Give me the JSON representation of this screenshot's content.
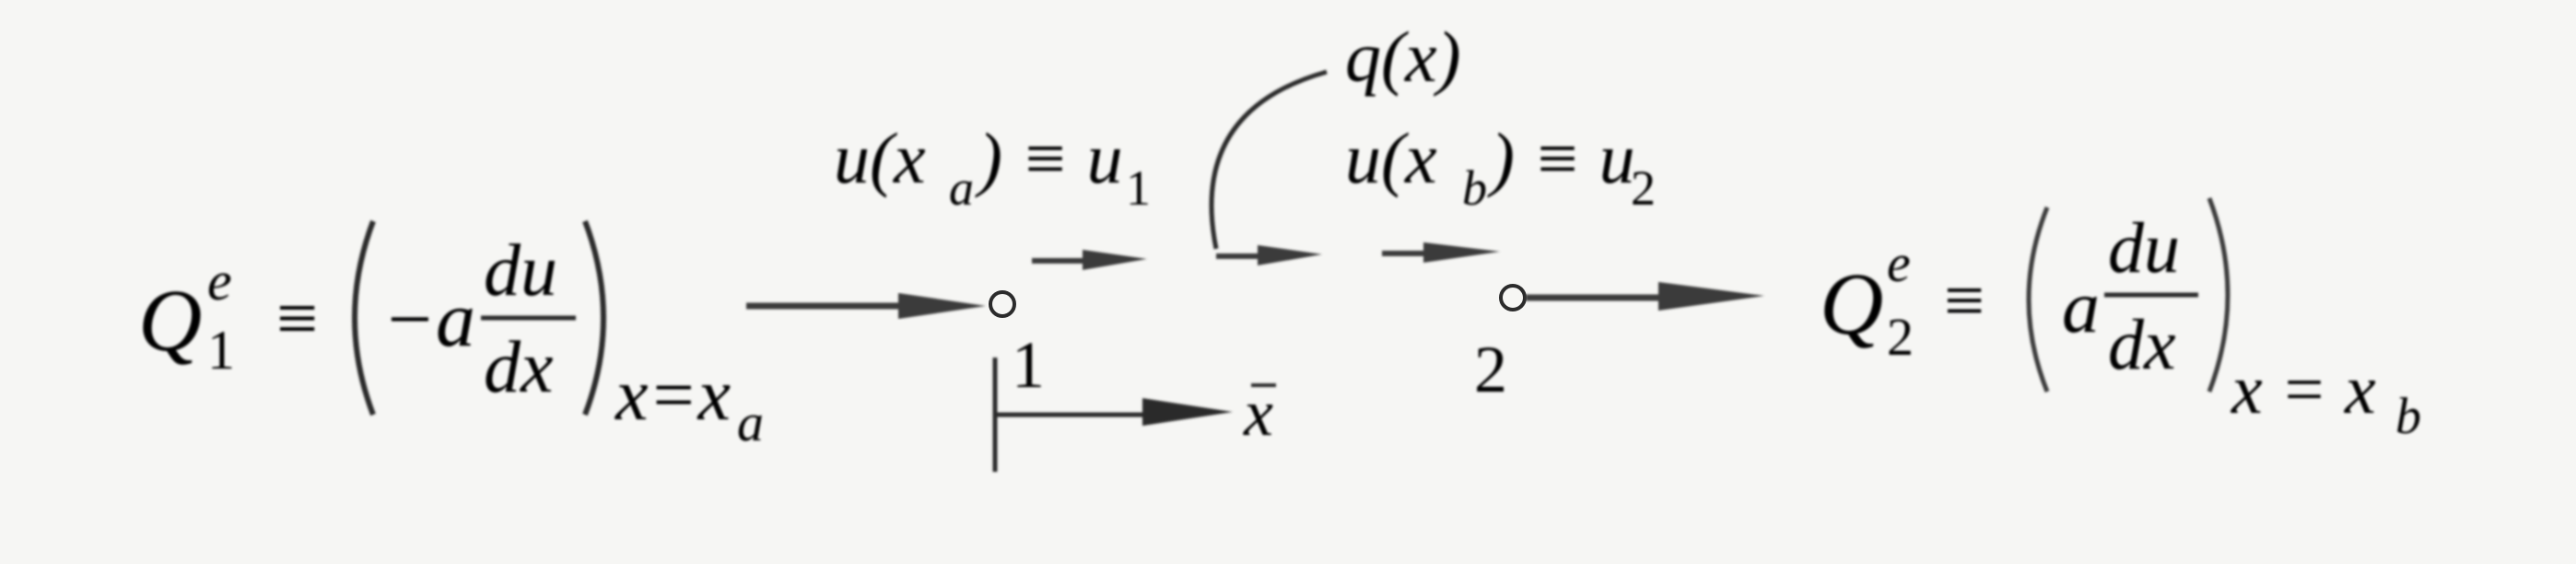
{
  "left_force": {
    "symbol": "Q",
    "superscript": "e",
    "subscript": "1",
    "equiv": "≡",
    "minus_a": "−a",
    "fraction_num": "du",
    "fraction_den": "dx",
    "eval_lhs": "x=x",
    "eval_sub": "a"
  },
  "right_force": {
    "symbol": "Q",
    "superscript": "e",
    "subscript": "2",
    "equiv": "≡",
    "a": "a",
    "fraction_num": "du",
    "fraction_den": "dx",
    "eval_lhs": "x = x",
    "eval_sub": "b"
  },
  "displacement_1": {
    "u": "u(x",
    "sub": "a",
    "close": ") ≡ u",
    "index": "1"
  },
  "displacement_2": {
    "u": "u(x",
    "sub": "b",
    "close": ") ≡ u",
    "index": "2"
  },
  "load_label": "q(x)",
  "node_1_label": "1",
  "node_2_label": "2",
  "local_axis_label": "x"
}
